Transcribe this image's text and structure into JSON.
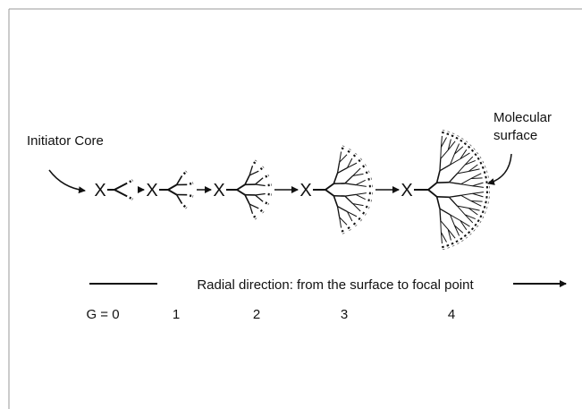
{
  "labels": {
    "initiator_core": "Initiator Core",
    "molecular_surface": [
      "Molecular",
      "surface"
    ]
  },
  "generations": [
    {
      "core": "X",
      "label": "G = 0"
    },
    {
      "core": "X",
      "label": "1"
    },
    {
      "core": "X",
      "label": "2"
    },
    {
      "core": "X",
      "label": "3"
    },
    {
      "core": "X",
      "label": "4"
    }
  ],
  "axis_caption": "Radial direction: from the surface to focal point"
}
